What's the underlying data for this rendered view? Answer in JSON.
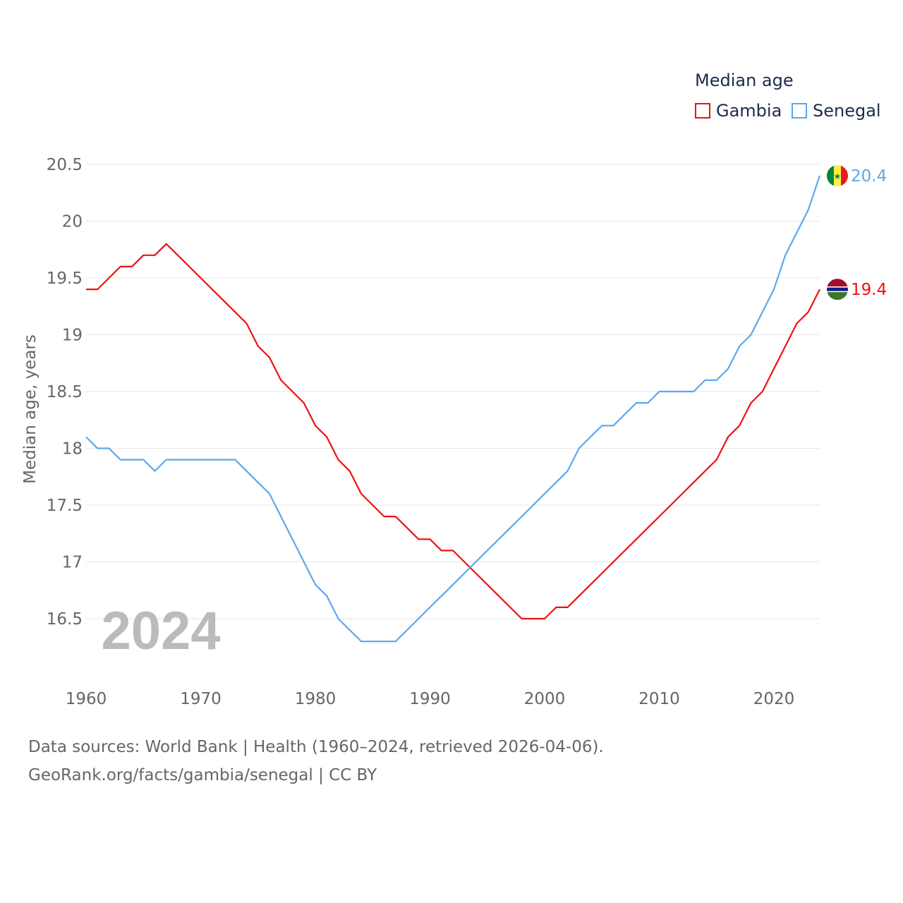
{
  "legend": {
    "title": "Median age"
  },
  "footer": {
    "line1": "Data sources: World Bank | Health (1960–2024, retrieved 2026-04-06).",
    "line2": "GeoRank.org/facts/gambia/senegal | CC BY"
  },
  "chart_data": {
    "type": "line",
    "title": "Median age",
    "xlabel": "",
    "ylabel": "Median age, years",
    "year_watermark": "2024",
    "xlim": [
      1960,
      2024
    ],
    "ylim": [
      16.0,
      20.6
    ],
    "x_ticks": [
      "1960",
      "1970",
      "1980",
      "1990",
      "2000",
      "2010",
      "2020"
    ],
    "y_ticks": [
      "16.5",
      "17",
      "17.5",
      "18",
      "18.5",
      "19",
      "19.5",
      "20",
      "20.5"
    ],
    "grid": true,
    "legend_position": "top-right",
    "x": [
      1960,
      1961,
      1962,
      1963,
      1964,
      1965,
      1966,
      1967,
      1968,
      1969,
      1970,
      1971,
      1972,
      1973,
      1974,
      1975,
      1976,
      1977,
      1978,
      1979,
      1980,
      1981,
      1982,
      1983,
      1984,
      1985,
      1986,
      1987,
      1988,
      1989,
      1990,
      1991,
      1992,
      1993,
      1994,
      1995,
      1996,
      1997,
      1998,
      1999,
      2000,
      2001,
      2002,
      2003,
      2004,
      2005,
      2006,
      2007,
      2008,
      2009,
      2010,
      2011,
      2012,
      2013,
      2014,
      2015,
      2016,
      2017,
      2018,
      2019,
      2020,
      2021,
      2022,
      2023,
      2024
    ],
    "series": [
      {
        "name": "Gambia",
        "color": "#ee1111",
        "end_label": "19.4",
        "flag": "gambia-flag",
        "values": [
          19.4,
          19.4,
          19.5,
          19.6,
          19.6,
          19.7,
          19.7,
          19.8,
          19.7,
          19.6,
          19.5,
          19.4,
          19.3,
          19.2,
          19.1,
          18.9,
          18.8,
          18.6,
          18.5,
          18.4,
          18.2,
          18.1,
          17.9,
          17.8,
          17.6,
          17.5,
          17.4,
          17.4,
          17.3,
          17.2,
          17.2,
          17.1,
          17.1,
          17.0,
          16.9,
          16.8,
          16.7,
          16.6,
          16.5,
          16.5,
          16.5,
          16.6,
          16.6,
          16.7,
          16.8,
          16.9,
          17.0,
          17.1,
          17.2,
          17.3,
          17.4,
          17.5,
          17.6,
          17.7,
          17.8,
          17.9,
          18.1,
          18.2,
          18.4,
          18.5,
          18.7,
          18.9,
          19.1,
          19.2,
          19.4
        ]
      },
      {
        "name": "Senegal",
        "color": "#5aa8f0",
        "end_label": "20.4",
        "flag": "senegal-flag",
        "values": [
          18.1,
          18.0,
          18.0,
          17.9,
          17.9,
          17.9,
          17.8,
          17.9,
          17.9,
          17.9,
          17.9,
          17.9,
          17.9,
          17.9,
          17.8,
          17.7,
          17.6,
          17.4,
          17.2,
          17.0,
          16.8,
          16.7,
          16.5,
          16.4,
          16.3,
          16.3,
          16.3,
          16.3,
          16.4,
          16.5,
          16.6,
          16.7,
          16.8,
          16.9,
          17.0,
          17.1,
          17.2,
          17.3,
          17.4,
          17.5,
          17.6,
          17.7,
          17.8,
          18.0,
          18.1,
          18.2,
          18.2,
          18.3,
          18.4,
          18.4,
          18.5,
          18.5,
          18.5,
          18.5,
          18.6,
          18.6,
          18.7,
          18.9,
          19.0,
          19.2,
          19.4,
          19.7,
          19.9,
          20.1,
          20.4
        ]
      }
    ]
  }
}
